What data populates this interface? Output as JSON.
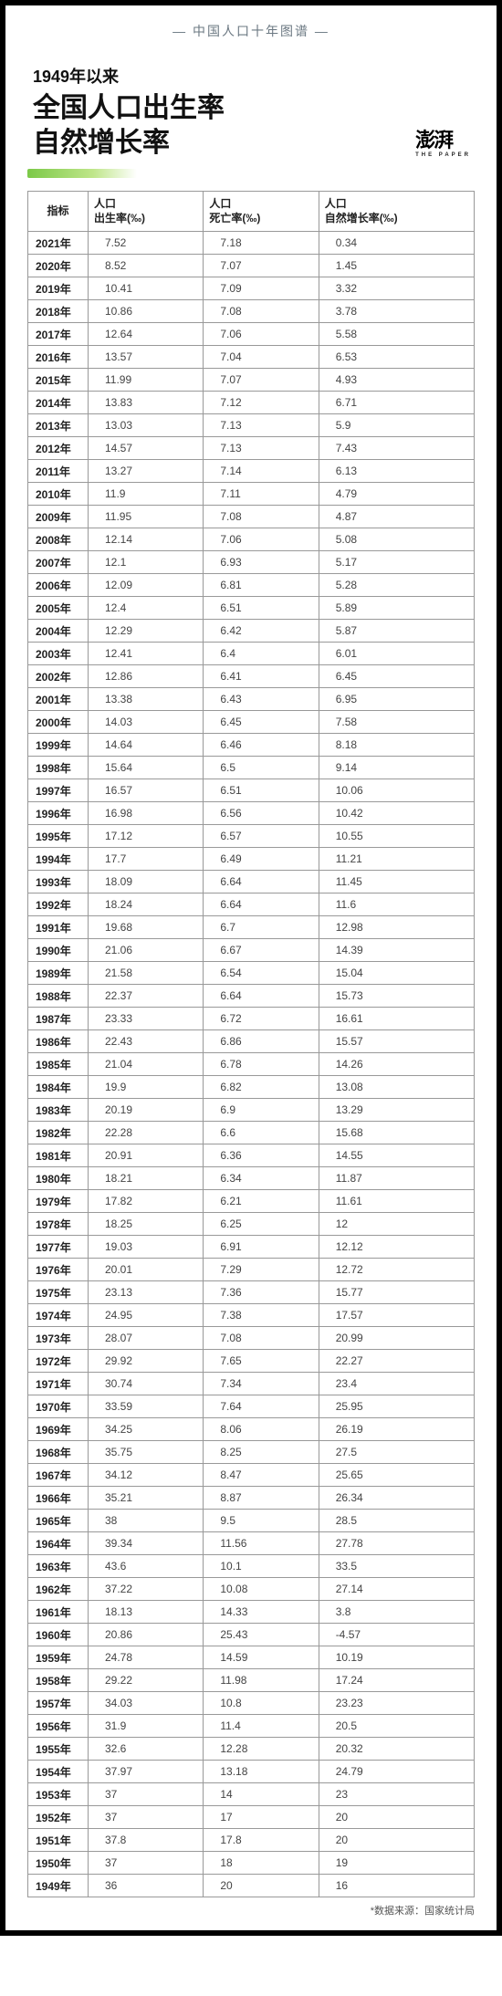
{
  "series_tag": "— 中国人口十年图谱 —",
  "subtitle": "1949年以来",
  "main_title_line1": "全国人口出生率",
  "main_title_line2": "自然增长率",
  "brand_name": "澎湃",
  "brand_sub": "THE PAPER",
  "source_note": "*数据来源：国家统计局",
  "columns": {
    "year_header": "指标",
    "birth_header_l1": "人口",
    "birth_header_l2": "出生率(‰)",
    "death_header_l1": "人口",
    "death_header_l2": "死亡率(‰)",
    "growth_header_l1": "人口",
    "growth_header_l2": "自然增长率(‰)"
  },
  "rows": [
    {
      "year": "2021年",
      "birth": "7.52",
      "death": "7.18",
      "growth": "0.34"
    },
    {
      "year": "2020年",
      "birth": "8.52",
      "death": "7.07",
      "growth": "1.45"
    },
    {
      "year": "2019年",
      "birth": "10.41",
      "death": "7.09",
      "growth": "3.32"
    },
    {
      "year": "2018年",
      "birth": "10.86",
      "death": "7.08",
      "growth": "3.78"
    },
    {
      "year": "2017年",
      "birth": "12.64",
      "death": "7.06",
      "growth": "5.58"
    },
    {
      "year": "2016年",
      "birth": "13.57",
      "death": "7.04",
      "growth": "6.53"
    },
    {
      "year": "2015年",
      "birth": "11.99",
      "death": "7.07",
      "growth": "4.93"
    },
    {
      "year": "2014年",
      "birth": "13.83",
      "death": "7.12",
      "growth": "6.71"
    },
    {
      "year": "2013年",
      "birth": "13.03",
      "death": "7.13",
      "growth": "5.9"
    },
    {
      "year": "2012年",
      "birth": "14.57",
      "death": "7.13",
      "growth": "7.43"
    },
    {
      "year": "2011年",
      "birth": "13.27",
      "death": "7.14",
      "growth": "6.13"
    },
    {
      "year": "2010年",
      "birth": "11.9",
      "death": "7.11",
      "growth": "4.79"
    },
    {
      "year": "2009年",
      "birth": "11.95",
      "death": "7.08",
      "growth": "4.87"
    },
    {
      "year": "2008年",
      "birth": "12.14",
      "death": "7.06",
      "growth": "5.08"
    },
    {
      "year": "2007年",
      "birth": "12.1",
      "death": "6.93",
      "growth": "5.17"
    },
    {
      "year": "2006年",
      "birth": "12.09",
      "death": "6.81",
      "growth": "5.28"
    },
    {
      "year": "2005年",
      "birth": "12.4",
      "death": "6.51",
      "growth": "5.89"
    },
    {
      "year": "2004年",
      "birth": "12.29",
      "death": "6.42",
      "growth": "5.87"
    },
    {
      "year": "2003年",
      "birth": "12.41",
      "death": "6.4",
      "growth": "6.01"
    },
    {
      "year": "2002年",
      "birth": "12.86",
      "death": "6.41",
      "growth": "6.45"
    },
    {
      "year": "2001年",
      "birth": "13.38",
      "death": "6.43",
      "growth": "6.95"
    },
    {
      "year": "2000年",
      "birth": "14.03",
      "death": "6.45",
      "growth": "7.58"
    },
    {
      "year": "1999年",
      "birth": "14.64",
      "death": "6.46",
      "growth": "8.18"
    },
    {
      "year": "1998年",
      "birth": "15.64",
      "death": "6.5",
      "growth": "9.14"
    },
    {
      "year": "1997年",
      "birth": "16.57",
      "death": "6.51",
      "growth": "10.06"
    },
    {
      "year": "1996年",
      "birth": "16.98",
      "death": "6.56",
      "growth": "10.42"
    },
    {
      "year": "1995年",
      "birth": "17.12",
      "death": "6.57",
      "growth": "10.55"
    },
    {
      "year": "1994年",
      "birth": "17.7",
      "death": "6.49",
      "growth": "11.21"
    },
    {
      "year": "1993年",
      "birth": "18.09",
      "death": "6.64",
      "growth": "11.45"
    },
    {
      "year": "1992年",
      "birth": "18.24",
      "death": "6.64",
      "growth": "11.6"
    },
    {
      "year": "1991年",
      "birth": "19.68",
      "death": "6.7",
      "growth": "12.98"
    },
    {
      "year": "1990年",
      "birth": "21.06",
      "death": "6.67",
      "growth": "14.39"
    },
    {
      "year": "1989年",
      "birth": "21.58",
      "death": "6.54",
      "growth": "15.04"
    },
    {
      "year": "1988年",
      "birth": "22.37",
      "death": "6.64",
      "growth": "15.73"
    },
    {
      "year": "1987年",
      "birth": "23.33",
      "death": "6.72",
      "growth": "16.61"
    },
    {
      "year": "1986年",
      "birth": "22.43",
      "death": "6.86",
      "growth": "15.57"
    },
    {
      "year": "1985年",
      "birth": "21.04",
      "death": "6.78",
      "growth": "14.26"
    },
    {
      "year": "1984年",
      "birth": "19.9",
      "death": "6.82",
      "growth": "13.08"
    },
    {
      "year": "1983年",
      "birth": "20.19",
      "death": "6.9",
      "growth": "13.29"
    },
    {
      "year": "1982年",
      "birth": "22.28",
      "death": "6.6",
      "growth": "15.68"
    },
    {
      "year": "1981年",
      "birth": "20.91",
      "death": "6.36",
      "growth": "14.55"
    },
    {
      "year": "1980年",
      "birth": "18.21",
      "death": "6.34",
      "growth": "11.87"
    },
    {
      "year": "1979年",
      "birth": "17.82",
      "death": "6.21",
      "growth": "11.61"
    },
    {
      "year": "1978年",
      "birth": "18.25",
      "death": "6.25",
      "growth": "12"
    },
    {
      "year": "1977年",
      "birth": "19.03",
      "death": "6.91",
      "growth": "12.12"
    },
    {
      "year": "1976年",
      "birth": "20.01",
      "death": "7.29",
      "growth": "12.72"
    },
    {
      "year": "1975年",
      "birth": "23.13",
      "death": "7.36",
      "growth": "15.77"
    },
    {
      "year": "1974年",
      "birth": "24.95",
      "death": "7.38",
      "growth": "17.57"
    },
    {
      "year": "1973年",
      "birth": "28.07",
      "death": "7.08",
      "growth": "20.99"
    },
    {
      "year": "1972年",
      "birth": "29.92",
      "death": "7.65",
      "growth": "22.27"
    },
    {
      "year": "1971年",
      "birth": "30.74",
      "death": "7.34",
      "growth": "23.4"
    },
    {
      "year": "1970年",
      "birth": "33.59",
      "death": "7.64",
      "growth": "25.95"
    },
    {
      "year": "1969年",
      "birth": "34.25",
      "death": "8.06",
      "growth": "26.19"
    },
    {
      "year": "1968年",
      "birth": "35.75",
      "death": "8.25",
      "growth": "27.5"
    },
    {
      "year": "1967年",
      "birth": "34.12",
      "death": "8.47",
      "growth": "25.65"
    },
    {
      "year": "1966年",
      "birth": "35.21",
      "death": "8.87",
      "growth": "26.34"
    },
    {
      "year": "1965年",
      "birth": "38",
      "death": "9.5",
      "growth": "28.5"
    },
    {
      "year": "1964年",
      "birth": "39.34",
      "death": "11.56",
      "growth": "27.78"
    },
    {
      "year": "1963年",
      "birth": "43.6",
      "death": "10.1",
      "growth": "33.5"
    },
    {
      "year": "1962年",
      "birth": "37.22",
      "death": "10.08",
      "growth": "27.14"
    },
    {
      "year": "1961年",
      "birth": "18.13",
      "death": "14.33",
      "growth": "3.8"
    },
    {
      "year": "1960年",
      "birth": "20.86",
      "death": "25.43",
      "growth": "-4.57"
    },
    {
      "year": "1959年",
      "birth": "24.78",
      "death": "14.59",
      "growth": "10.19"
    },
    {
      "year": "1958年",
      "birth": "29.22",
      "death": "11.98",
      "growth": "17.24"
    },
    {
      "year": "1957年",
      "birth": "34.03",
      "death": "10.8",
      "growth": "23.23"
    },
    {
      "year": "1956年",
      "birth": "31.9",
      "death": "11.4",
      "growth": "20.5"
    },
    {
      "year": "1955年",
      "birth": "32.6",
      "death": "12.28",
      "growth": "20.32"
    },
    {
      "year": "1954年",
      "birth": "37.97",
      "death": "13.18",
      "growth": "24.79"
    },
    {
      "year": "1953年",
      "birth": "37",
      "death": "14",
      "growth": "23"
    },
    {
      "year": "1952年",
      "birth": "37",
      "death": "17",
      "growth": "20"
    },
    {
      "year": "1951年",
      "birth": "37.8",
      "death": "17.8",
      "growth": "20"
    },
    {
      "year": "1950年",
      "birth": "37",
      "death": "18",
      "growth": "19"
    },
    {
      "year": "1949年",
      "birth": "36",
      "death": "20",
      "growth": "16"
    }
  ]
}
